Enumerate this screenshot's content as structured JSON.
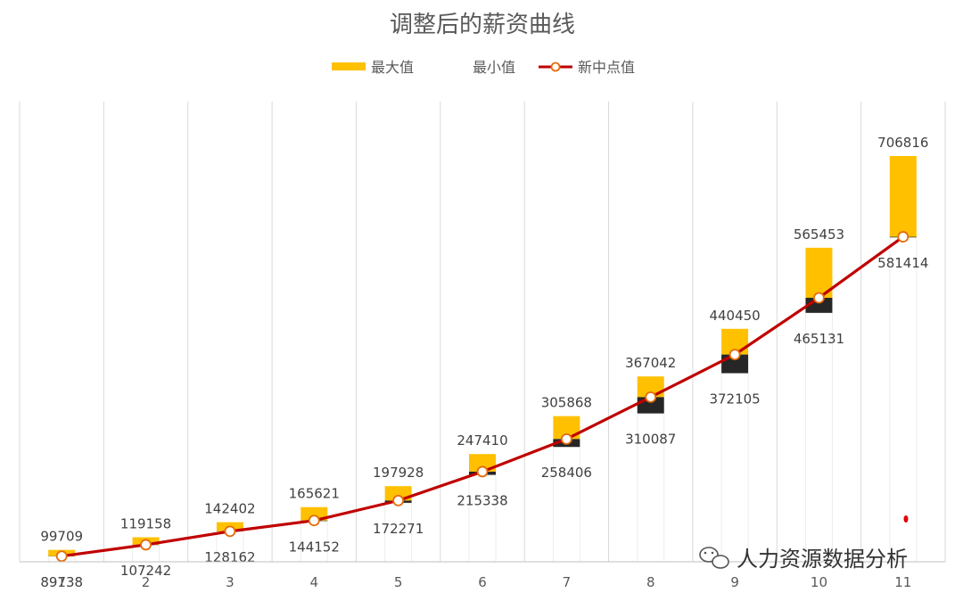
{
  "chart_data": {
    "type": "bar",
    "title": "调整后的薪资曲线",
    "categories": [
      "1",
      "2",
      "3",
      "4",
      "5",
      "6",
      "7",
      "8",
      "9",
      "10",
      "11"
    ],
    "series": [
      {
        "name": "最大值",
        "values": [
          99709,
          119158,
          142402,
          165621,
          197928,
          247410,
          305868,
          367042,
          440450,
          565453,
          706816
        ],
        "color": "#FFC000"
      },
      {
        "name": "最小值",
        "values": [
          89738,
          107242,
          128162,
          144152,
          172271,
          215338,
          258406,
          310087,
          372105,
          465131,
          581414
        ],
        "color": "#262626"
      },
      {
        "name": "新中点值",
        "values": [
          90000,
          107600,
          128300,
          144900,
          175700,
          220300,
          270600,
          335200,
          400800,
          488300,
          582300
        ],
        "color": "#C00000",
        "marker": "circle",
        "line": true
      }
    ],
    "grid": true,
    "legend_position": "top"
  },
  "watermark": "人力资源数据分析"
}
